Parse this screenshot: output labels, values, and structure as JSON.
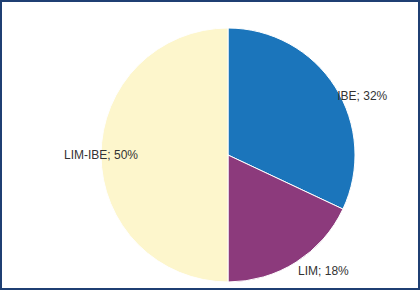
{
  "chart_data": {
    "type": "pie",
    "categories": [
      "IBE",
      "LIM",
      "LIM-IBE"
    ],
    "values": [
      32,
      18,
      50
    ],
    "value_labels": [
      "IBE; 32%",
      "LIM; 18%",
      "LIM-IBE; 50%"
    ],
    "colors": [
      "#1b75bb",
      "#8c3a7c",
      "#fdf6cc"
    ],
    "data_labels": true
  }
}
